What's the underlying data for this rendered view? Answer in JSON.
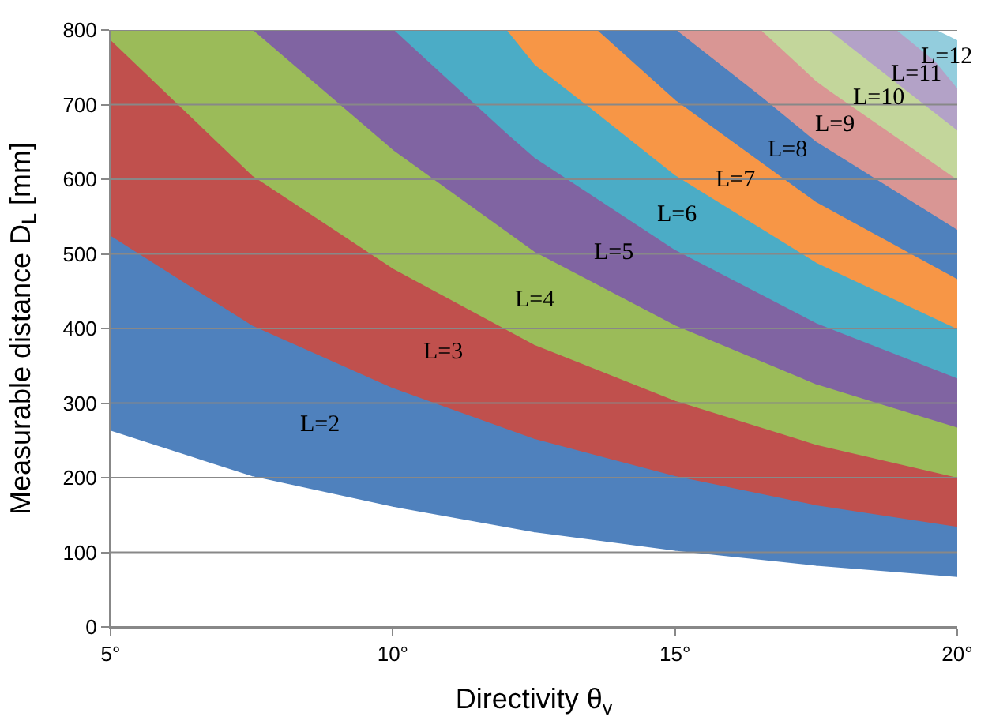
{
  "chart_data": {
    "type": "area",
    "xlabel": "Directivity θ$_{v}$",
    "ylabel": "Measurable distance D$_{L}$ [mm]",
    "xlim": [
      5,
      20
    ],
    "xticks": [
      {
        "value": 5,
        "label": "5°"
      },
      {
        "value": 10,
        "label": "10°"
      },
      {
        "value": 15,
        "label": "15°"
      },
      {
        "value": 20,
        "label": "20°"
      }
    ],
    "ylim": [
      0,
      800
    ],
    "yticks": [
      0,
      100,
      200,
      300,
      400,
      500,
      600,
      700,
      800
    ],
    "grid": "y",
    "legend": false,
    "series": [
      {
        "color": "#ffffff",
        "x": [
          5,
          7.5,
          10,
          12.5,
          15,
          17.5,
          20
        ],
        "values": [
          262,
          201,
          160,
          126,
          101,
          81,
          66
        ]
      },
      {
        "name": "L=2",
        "color": "#4f81bd",
        "x": [
          5,
          7.5,
          10,
          12.5,
          15,
          17.5,
          20
        ],
        "values": [
          523,
          403,
          319,
          251,
          201,
          162,
          133
        ]
      },
      {
        "name": "L=3",
        "color": "#c0504d",
        "x": [
          5,
          7.5,
          10,
          12.5,
          15,
          17.5,
          20
        ],
        "values": [
          785,
          604,
          479,
          377,
          302,
          243,
          199
        ]
      },
      {
        "name": "L=4",
        "color": "#9bbb59",
        "x": [
          5,
          7.5,
          10,
          12.5,
          15,
          17.5,
          20
        ],
        "values": [
          800,
          800,
          638,
          502,
          403,
          324,
          266
        ]
      },
      {
        "name": "L=5",
        "color": "#8064a2",
        "x": [
          5,
          10,
          12,
          12.5,
          15,
          17.5,
          20
        ],
        "values": [
          800,
          800,
          661,
          628,
          504,
          406,
          332
        ]
      },
      {
        "name": "L=6",
        "color": "#4bacc6",
        "x": [
          5,
          12,
          12.5,
          13.6,
          15,
          17.5,
          20
        ],
        "values": [
          800,
          800,
          753,
          688,
          604,
          487,
          398
        ]
      },
      {
        "name": "L=7",
        "color": "#f79646",
        "x": [
          5,
          12.5,
          13.6,
          15,
          17.5,
          20
        ],
        "values": [
          800,
          800,
          800,
          705,
          568,
          465
        ]
      },
      {
        "name": "L=8",
        "color": "#4f81bd",
        "x": [
          5,
          15,
          16.5,
          17.5,
          20
        ],
        "values": [
          800,
          800,
          711,
          649,
          531
        ]
      },
      {
        "name": "L=9",
        "color": "#d99694",
        "x": [
          5,
          16.5,
          17.5,
          17.7,
          18.9,
          20
        ],
        "values": [
          800,
          800,
          730,
          719,
          656,
          598
        ]
      },
      {
        "name": "L=10",
        "color": "#c3d69b",
        "x": [
          5,
          17.5,
          17.7,
          18.9,
          20
        ],
        "values": [
          800,
          800,
          800,
          729,
          664
        ]
      },
      {
        "name": "L=11",
        "color": "#b3a2c7",
        "x": [
          5,
          18.9,
          19.6,
          20
        ],
        "values": [
          800,
          800,
          757,
          720
        ]
      },
      {
        "name": "L=12",
        "color": "#93cddd",
        "x": [
          5,
          19.6,
          20
        ],
        "values": [
          800,
          800,
          785
        ]
      }
    ]
  }
}
